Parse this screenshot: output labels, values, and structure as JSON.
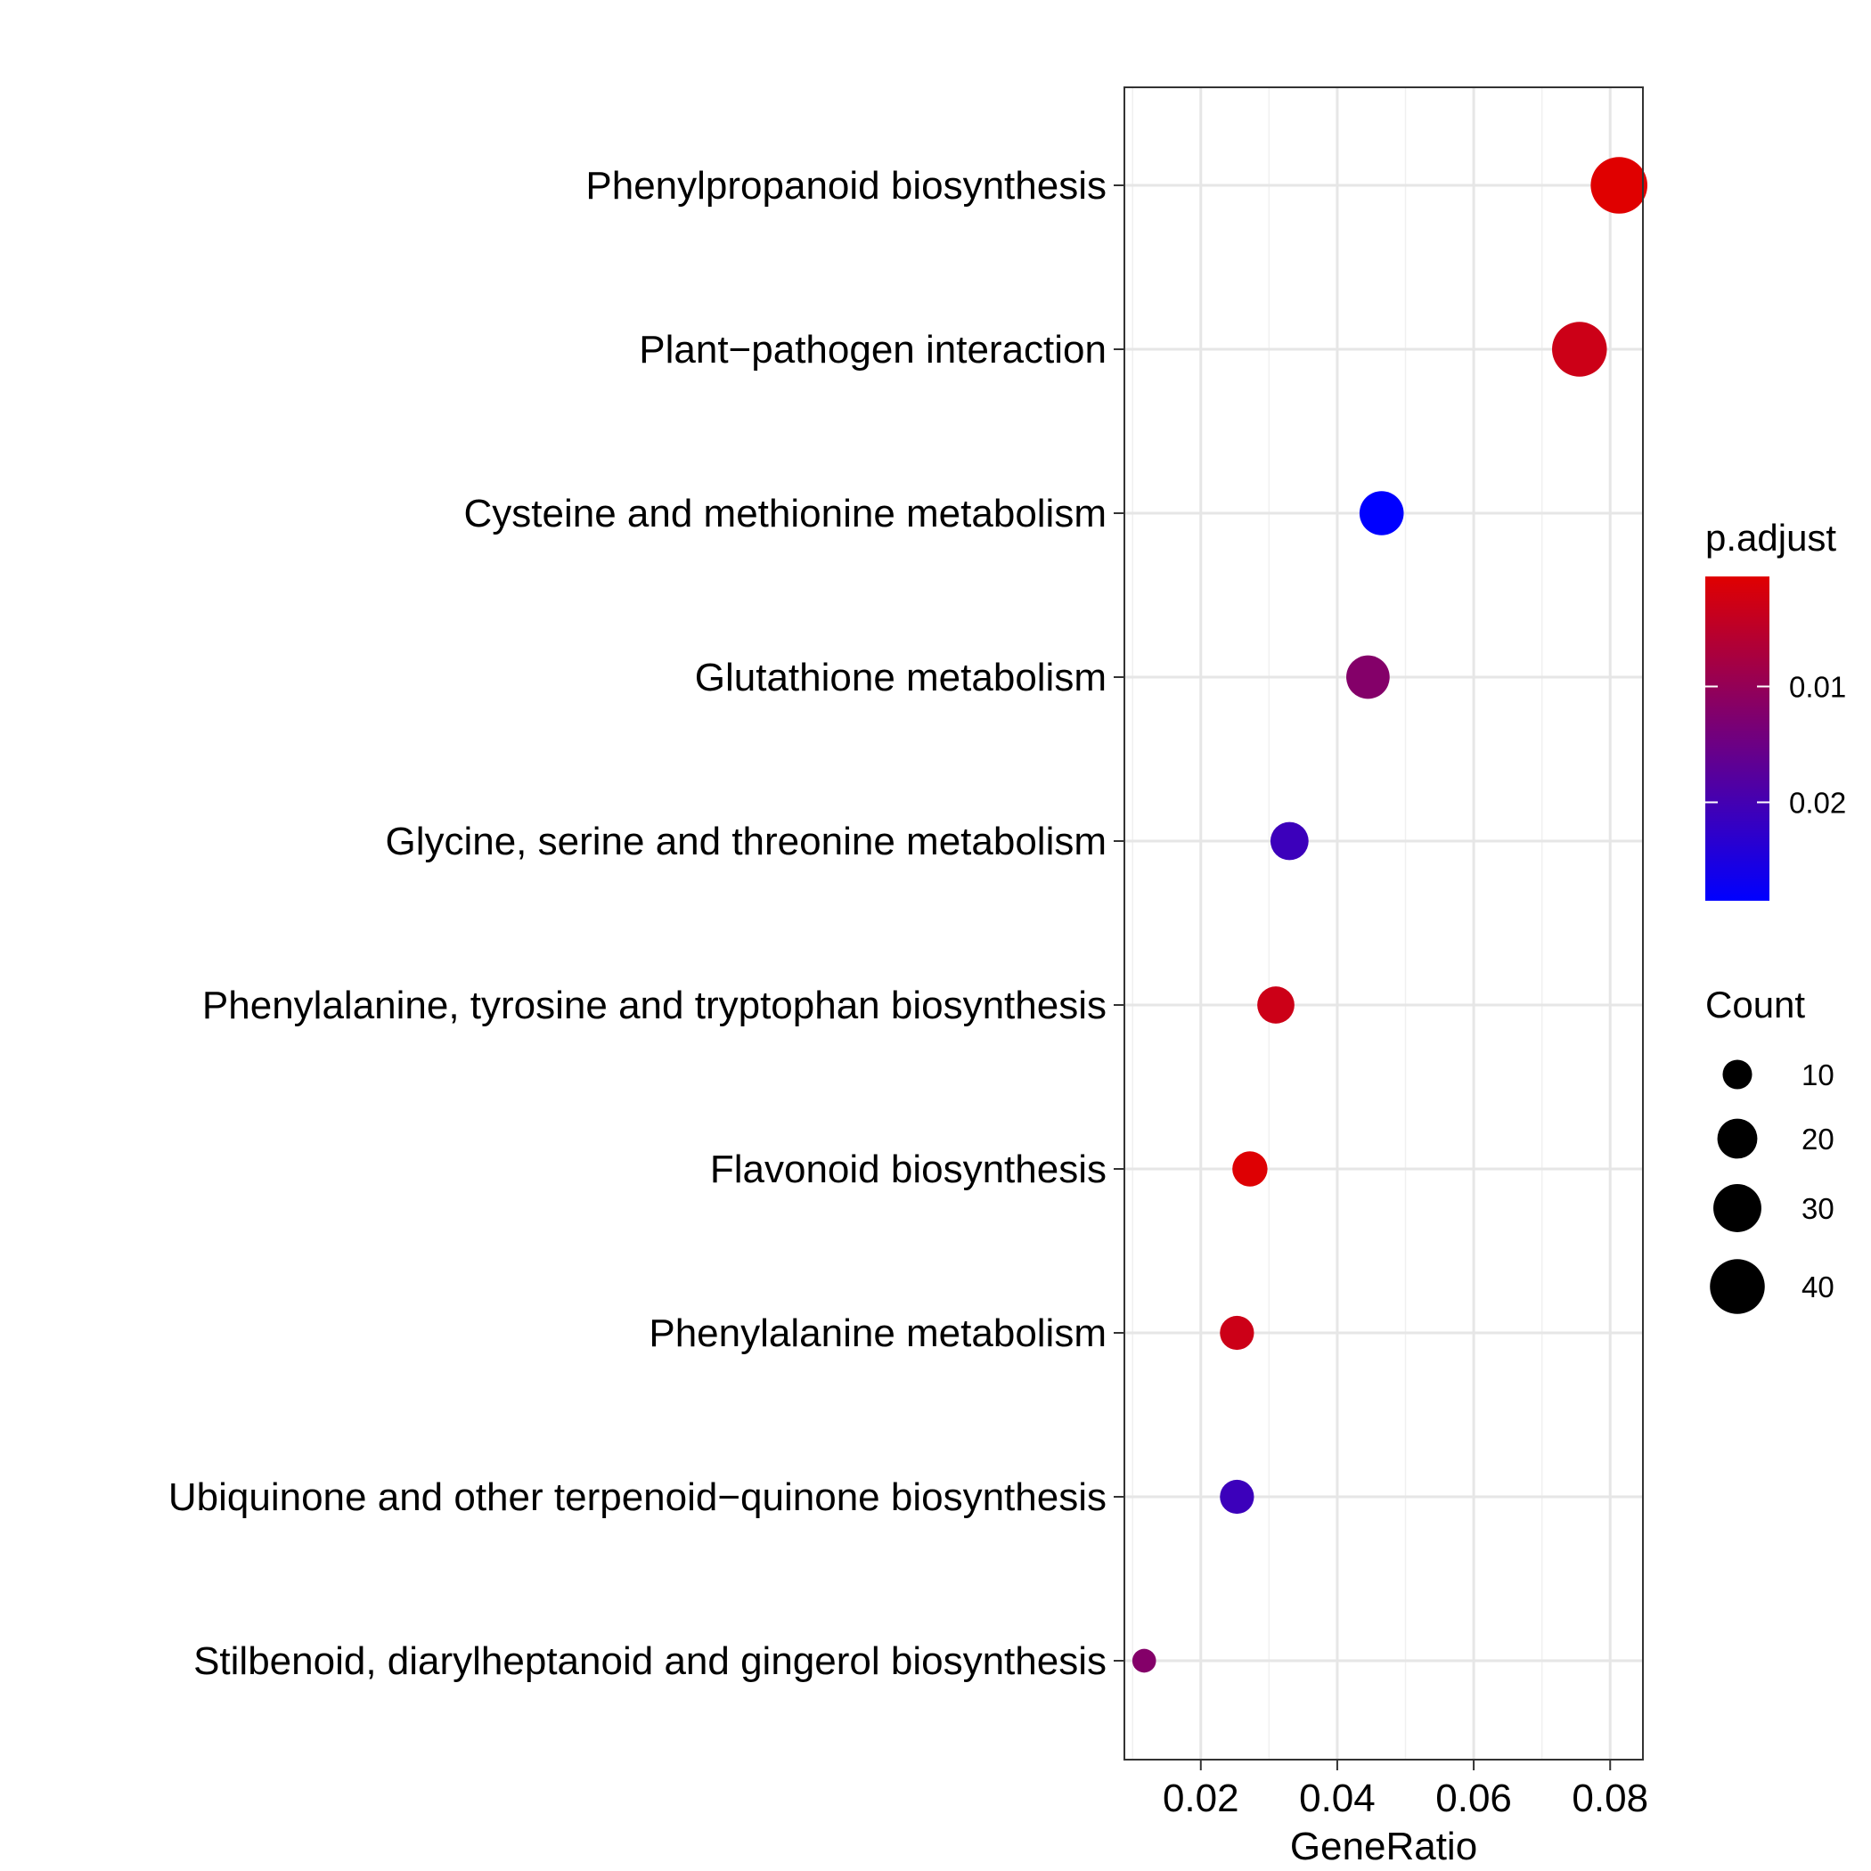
{
  "chart_data": {
    "type": "scatter",
    "subtype": "dot-plot",
    "xlabel": "GeneRatio",
    "ylabel": "",
    "xlim": [
      0.0088,
      0.0848
    ],
    "x_ticks": [
      {
        "value": 0.02,
        "label": "0.02"
      },
      {
        "value": 0.04,
        "label": "0.04"
      },
      {
        "value": 0.06,
        "label": "0.06"
      },
      {
        "value": 0.08,
        "label": "0.08"
      }
    ],
    "grid": true,
    "categories": [
      "Phenylpropanoid biosynthesis",
      "Plant−pathogen interaction",
      "Cysteine and methionine metabolism",
      "Glutathione metabolism",
      "Glycine, serine and threonine metabolism",
      "Phenylalanine, tyrosine and tryptophan biosynthesis",
      "Flavonoid biosynthesis",
      "Phenylalanine metabolism",
      "Ubiquinone and other terpenoid−quinone biosynthesis",
      "Stilbenoid, diarylheptanoid and gingerol biosynthesis"
    ],
    "points": [
      {
        "term": "Phenylpropanoid biosynthesis",
        "gene_ratio": 0.0813,
        "count": 43,
        "p_adjust": 0.0005
      },
      {
        "term": "Plant−pathogen interaction",
        "gene_ratio": 0.0755,
        "count": 40,
        "p_adjust": 0.003
      },
      {
        "term": "Cysteine and methionine metabolism",
        "gene_ratio": 0.0465,
        "count": 25,
        "p_adjust": 0.0285
      },
      {
        "term": "Glutathione metabolism",
        "gene_ratio": 0.0445,
        "count": 24,
        "p_adjust": 0.012
      },
      {
        "term": "Glycine, serine and threonine metabolism",
        "gene_ratio": 0.033,
        "count": 18,
        "p_adjust": 0.021
      },
      {
        "term": "Phenylalanine, tyrosine and tryptophan biosynthesis",
        "gene_ratio": 0.031,
        "count": 17,
        "p_adjust": 0.003
      },
      {
        "term": "Flavonoid biosynthesis",
        "gene_ratio": 0.0272,
        "count": 15,
        "p_adjust": 0.0008
      },
      {
        "term": "Phenylalanine metabolism",
        "gene_ratio": 0.0253,
        "count": 14,
        "p_adjust": 0.003
      },
      {
        "term": "Ubiquinone and other terpenoid−quinone biosynthesis",
        "gene_ratio": 0.0253,
        "count": 14,
        "p_adjust": 0.021
      },
      {
        "term": "Stilbenoid, diarylheptanoid and gingerol biosynthesis",
        "gene_ratio": 0.0117,
        "count": 6,
        "p_adjust": 0.012
      }
    ],
    "color_legend": {
      "title": "p.adjust",
      "low_color": "#e00000",
      "high_color": "#0000ff",
      "domain": [
        0.0005,
        0.0285
      ],
      "ticks": [
        {
          "value": 0.01,
          "label": "0.01"
        },
        {
          "value": 0.02,
          "label": "0.02"
        }
      ]
    },
    "size_legend": {
      "title": "Count",
      "entries": [
        {
          "value": 10,
          "label": "10"
        },
        {
          "value": 20,
          "label": "20"
        },
        {
          "value": 30,
          "label": "30"
        },
        {
          "value": 40,
          "label": "40"
        }
      ]
    },
    "legend_position": "right"
  }
}
